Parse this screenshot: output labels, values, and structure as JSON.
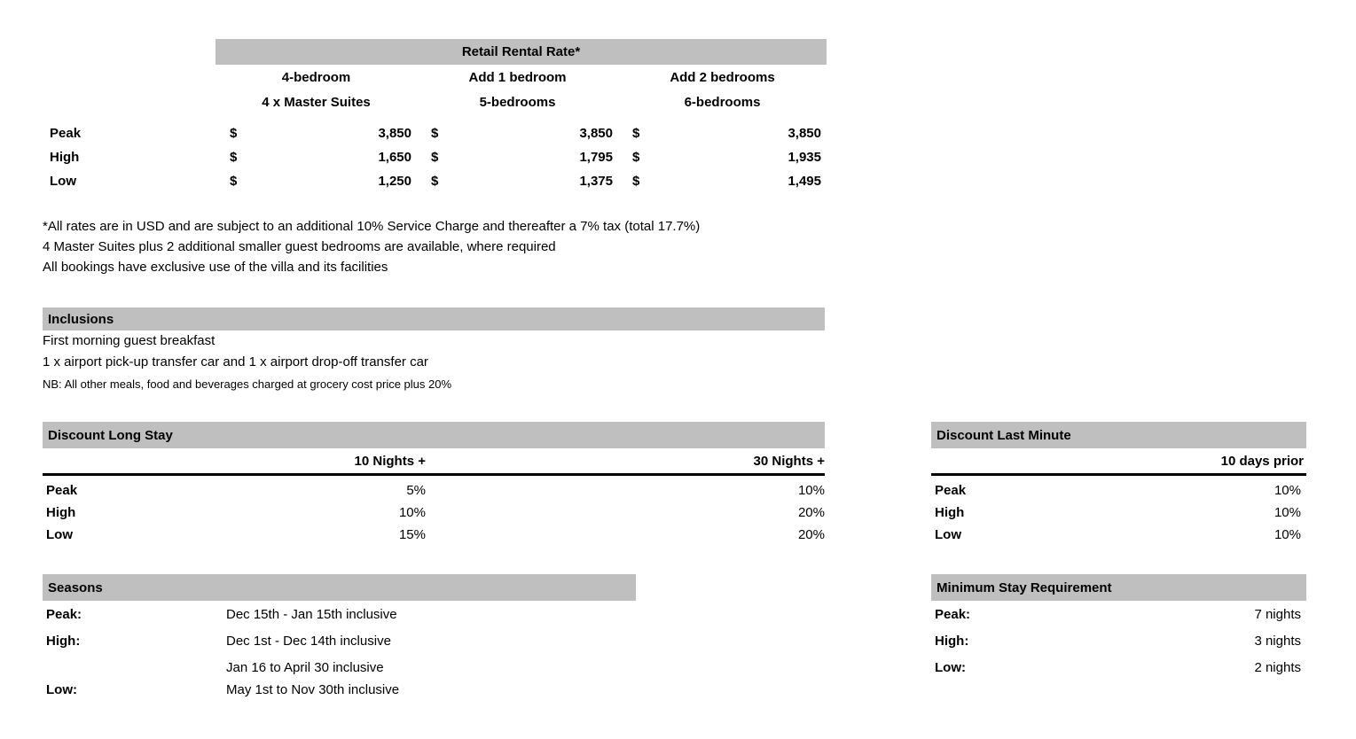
{
  "colors": {
    "header_bar": "#BFBFBF",
    "text": "#000000",
    "background": "#FFFFFF"
  },
  "rental_table": {
    "title": "Retail Rental Rate*",
    "currency_symbol": "$",
    "columns": [
      {
        "header_line1": "4-bedroom",
        "header_line2": "4 x Master Suites"
      },
      {
        "header_line1": "Add 1 bedroom",
        "header_line2": "5-bedrooms"
      },
      {
        "header_line1": "Add 2 bedrooms",
        "header_line2": "6-bedrooms"
      }
    ],
    "rows": [
      {
        "label": "Peak",
        "values": [
          "3,850",
          "3,850",
          "3,850"
        ]
      },
      {
        "label": "High",
        "values": [
          "1,650",
          "1,795",
          "1,935"
        ]
      },
      {
        "label": "Low",
        "values": [
          "1,250",
          "1,375",
          "1,495"
        ]
      }
    ]
  },
  "notes": [
    "*All rates are in USD and are subject to an additional 10% Service Charge and thereafter a 7% tax (total 17.7%)",
    "4 Master Suites plus 2 additional smaller guest bedrooms are available, where required",
    "All bookings have exclusive use of the villa and its facilities"
  ],
  "inclusions": {
    "title": "Inclusions",
    "items": [
      "First morning guest breakfast",
      "1 x airport pick-up transfer car and 1 x airport drop-off transfer car"
    ],
    "note": "NB: All other meals, food and beverages charged at grocery cost price plus 20%"
  },
  "discount_long_stay": {
    "title": "Discount Long Stay",
    "columns": [
      "10 Nights +",
      "30 Nights +"
    ],
    "rows": [
      {
        "label": "Peak",
        "values": [
          "5%",
          "10%"
        ]
      },
      {
        "label": "High",
        "values": [
          "10%",
          "20%"
        ]
      },
      {
        "label": "Low",
        "values": [
          "15%",
          "20%"
        ]
      }
    ]
  },
  "discount_last_minute": {
    "title": "Discount Last Minute",
    "column": "10 days prior",
    "rows": [
      {
        "label": "Peak",
        "value": "10%"
      },
      {
        "label": "High",
        "value": "10%"
      },
      {
        "label": "Low",
        "value": "10%"
      }
    ]
  },
  "seasons": {
    "title": "Seasons",
    "rows": [
      {
        "label": "Peak:",
        "value": "Dec 15th - Jan 15th inclusive"
      },
      {
        "label": "High:",
        "value": "Dec 1st - Dec 14th inclusive"
      },
      {
        "label": "Low:",
        "value_line1": "Jan 16 to April 30 inclusive",
        "value_line2": "May 1st to Nov 30th inclusive"
      }
    ]
  },
  "minimum_stay": {
    "title": "Minimum Stay Requirement",
    "rows": [
      {
        "label": "Peak:",
        "value": "7 nights"
      },
      {
        "label": "High:",
        "value": "3 nights"
      },
      {
        "label": "Low:",
        "value": "2 nights"
      }
    ]
  }
}
